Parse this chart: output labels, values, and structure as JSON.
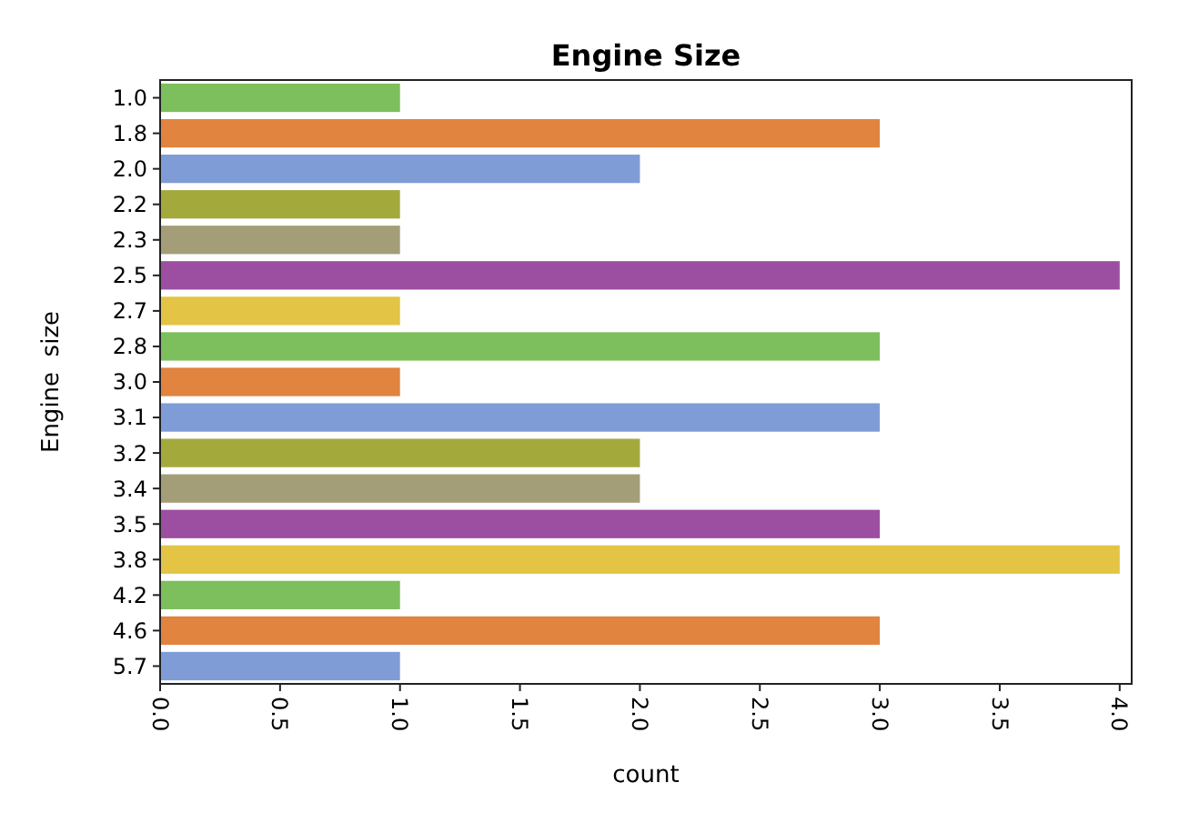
{
  "chart_data": {
    "type": "bar",
    "orientation": "horizontal",
    "title": "Engine Size",
    "xlabel": "count",
    "ylabel": "Engine  size",
    "categories": [
      "1.0",
      "1.8",
      "2.0",
      "2.2",
      "2.3",
      "2.5",
      "2.7",
      "2.8",
      "3.0",
      "3.1",
      "3.2",
      "3.4",
      "3.5",
      "3.8",
      "4.2",
      "4.6",
      "5.7"
    ],
    "values": [
      1,
      3,
      2,
      1,
      1,
      4,
      1,
      3,
      1,
      3,
      2,
      2,
      3,
      4,
      1,
      3,
      1
    ],
    "colors": [
      "#7cbf5c",
      "#e0843f",
      "#7f9cd6",
      "#a4a93c",
      "#a39e78",
      "#9c4ea0",
      "#e3c444",
      "#7cbf5c",
      "#e0843f",
      "#7f9cd6",
      "#a4a93c",
      "#a39e78",
      "#9c4ea0",
      "#e3c444",
      "#7cbf5c",
      "#e0843f",
      "#7f9cd6"
    ],
    "xlim": [
      0,
      4.05
    ],
    "xticks": [
      {
        "value": 0,
        "label": "0.0"
      },
      {
        "value": 0.5,
        "label": "0.5"
      },
      {
        "value": 1,
        "label": "1.0"
      },
      {
        "value": 1.5,
        "label": "1.5"
      },
      {
        "value": 2,
        "label": "2.0"
      },
      {
        "value": 2.5,
        "label": "2.5"
      },
      {
        "value": 3,
        "label": "3.0"
      },
      {
        "value": 3.5,
        "label": "3.5"
      },
      {
        "value": 4,
        "label": "4.0"
      }
    ],
    "grid": false
  }
}
